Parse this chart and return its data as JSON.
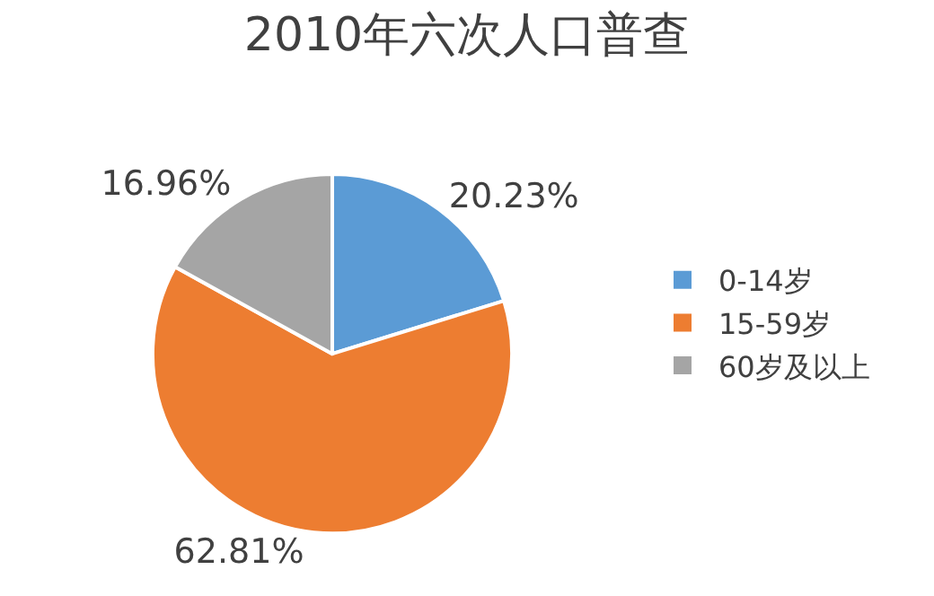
{
  "chart_data": {
    "type": "pie",
    "title": "2010年六次人口普查",
    "categories": [
      "0-14岁",
      "15-59岁",
      "60岁及以上"
    ],
    "values": [
      20.23,
      62.81,
      16.96
    ],
    "colors": [
      "#5b9bd5",
      "#ed7d31",
      "#a5a5a5"
    ],
    "value_labels": [
      "20.23%",
      "62.81%",
      "16.96%"
    ],
    "legend": "right"
  }
}
